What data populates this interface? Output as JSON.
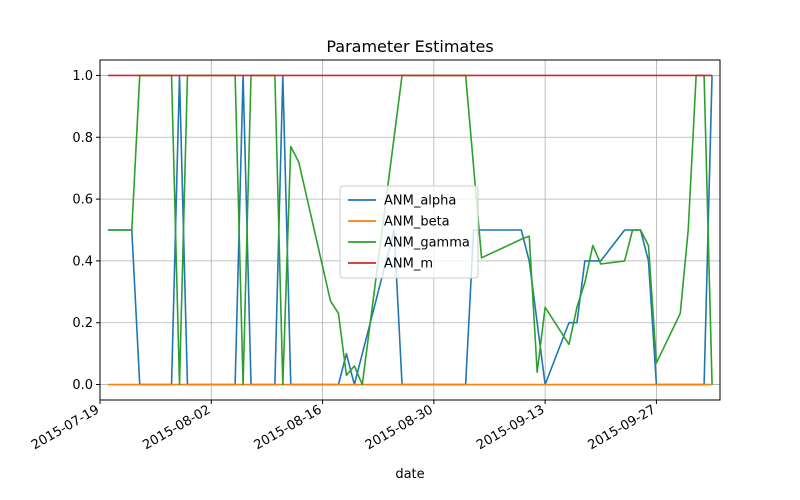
{
  "chart_data": {
    "type": "line",
    "title": "Parameter Estimates",
    "xlabel": "date",
    "ylabel": "",
    "xlim": [
      "2015-07-19",
      "2015-10-05"
    ],
    "ylim": [
      -0.05,
      1.05
    ],
    "x_ticks": [
      "2015-07-19",
      "2015-08-02",
      "2015-08-16",
      "2015-08-30",
      "2015-09-13",
      "2015-09-27"
    ],
    "y_ticks": [
      "0.0",
      "0.2",
      "0.4",
      "0.6",
      "0.8",
      "1.0"
    ],
    "y_tick_values": [
      0.0,
      0.2,
      0.4,
      0.6,
      0.8,
      1.0
    ],
    "grid": true,
    "legend": "center",
    "series": [
      {
        "name": "ANM_alpha",
        "color": "#1f77b4",
        "points": [
          [
            "2015-07-20",
            0.5
          ],
          [
            "2015-07-23",
            0.5
          ],
          [
            "2015-07-24",
            0.0
          ],
          [
            "2015-07-28",
            0.0
          ],
          [
            "2015-07-29",
            1.0
          ],
          [
            "2015-07-30",
            0.0
          ],
          [
            "2015-08-05",
            0.0
          ],
          [
            "2015-08-06",
            1.0
          ],
          [
            "2015-08-07",
            0.0
          ],
          [
            "2015-08-10",
            0.0
          ],
          [
            "2015-08-11",
            1.0
          ],
          [
            "2015-08-12",
            0.0
          ],
          [
            "2015-08-18",
            0.0
          ],
          [
            "2015-08-19",
            0.1
          ],
          [
            "2015-08-20",
            0.0
          ],
          [
            "2015-08-25",
            0.5
          ],
          [
            "2015-08-26",
            0.0
          ],
          [
            "2015-09-03",
            0.0
          ],
          [
            "2015-09-04",
            0.5
          ],
          [
            "2015-09-10",
            0.5
          ],
          [
            "2015-09-11",
            0.4
          ],
          [
            "2015-09-13",
            0.0
          ],
          [
            "2015-09-16",
            0.2
          ],
          [
            "2015-09-17",
            0.2
          ],
          [
            "2015-09-18",
            0.4
          ],
          [
            "2015-09-20",
            0.4
          ],
          [
            "2015-09-23",
            0.5
          ],
          [
            "2015-09-25",
            0.5
          ],
          [
            "2015-09-26",
            0.4
          ],
          [
            "2015-09-27",
            0.0
          ],
          [
            "2015-10-03",
            0.0
          ],
          [
            "2015-10-04",
            1.0
          ]
        ]
      },
      {
        "name": "ANM_beta",
        "color": "#ff7f0e",
        "points": [
          [
            "2015-07-20",
            0.0
          ],
          [
            "2015-10-04",
            0.0
          ]
        ]
      },
      {
        "name": "ANM_gamma",
        "color": "#2ca02c",
        "points": [
          [
            "2015-07-20",
            0.5
          ],
          [
            "2015-07-23",
            0.5
          ],
          [
            "2015-07-24",
            1.0
          ],
          [
            "2015-07-28",
            1.0
          ],
          [
            "2015-07-29",
            0.0
          ],
          [
            "2015-07-30",
            1.0
          ],
          [
            "2015-08-05",
            1.0
          ],
          [
            "2015-08-06",
            0.0
          ],
          [
            "2015-08-07",
            1.0
          ],
          [
            "2015-08-10",
            1.0
          ],
          [
            "2015-08-11",
            0.0
          ],
          [
            "2015-08-12",
            0.77
          ],
          [
            "2015-08-13",
            0.72
          ],
          [
            "2015-08-17",
            0.27
          ],
          [
            "2015-08-18",
            0.23
          ],
          [
            "2015-08-19",
            0.03
          ],
          [
            "2015-08-20",
            0.06
          ],
          [
            "2015-08-21",
            0.0
          ],
          [
            "2015-08-26",
            1.0
          ],
          [
            "2015-09-03",
            1.0
          ],
          [
            "2015-09-05",
            0.41
          ],
          [
            "2015-09-10",
            0.47
          ],
          [
            "2015-09-11",
            0.48
          ],
          [
            "2015-09-12",
            0.04
          ],
          [
            "2015-09-13",
            0.25
          ],
          [
            "2015-09-16",
            0.13
          ],
          [
            "2015-09-17",
            0.25
          ],
          [
            "2015-09-18",
            0.33
          ],
          [
            "2015-09-19",
            0.45
          ],
          [
            "2015-09-20",
            0.39
          ],
          [
            "2015-09-23",
            0.4
          ],
          [
            "2015-09-24",
            0.5
          ],
          [
            "2015-09-25",
            0.5
          ],
          [
            "2015-09-26",
            0.45
          ],
          [
            "2015-09-27",
            0.07
          ],
          [
            "2015-09-30",
            0.23
          ],
          [
            "2015-10-01",
            0.5
          ],
          [
            "2015-10-02",
            1.0
          ],
          [
            "2015-10-03",
            1.0
          ],
          [
            "2015-10-04",
            0.0
          ]
        ]
      },
      {
        "name": "ANM_m",
        "color": "#d62728",
        "points": [
          [
            "2015-07-20",
            1.0
          ],
          [
            "2015-10-04",
            1.0
          ]
        ]
      }
    ]
  }
}
